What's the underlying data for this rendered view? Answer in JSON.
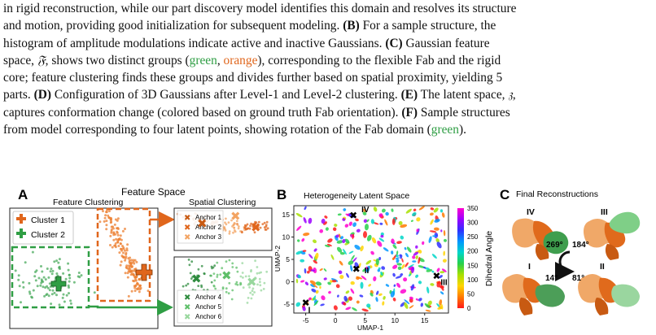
{
  "caption": {
    "line1": "in rigid reconstruction, while our part discovery model identifies this domain and resolves its structure",
    "line2": "and motion, providing good initialization for subsequent modeling.",
    "label_B": "(B)",
    "line2b": "For a sample structure, the",
    "line3": "histogram of amplitude modulations indicate active and inactive Gaussians.",
    "label_C": "(C)",
    "line3b": "Gaussian feature",
    "line4a": "space,",
    "frak_F": "𝔉",
    "line4b": ", shows two distinct groups (",
    "green_word": "green",
    "comma": ", ",
    "orange_word": "orange",
    "line4c": "), corresponding to the flexible Fab and the rigid",
    "line5": "core; feature clustering finds these groups and divides further based on spatial proximity, yielding 5",
    "line6a": "parts.",
    "label_D": "(D)",
    "line6b": "Configuration of 3D Gaussians after Level-1 and Level-2 clustering.",
    "label_E": "(E)",
    "line6c": "The latent space,",
    "frak_Z": "𝔷",
    "line6d": ",",
    "line7": "captures conformation change (colored based on ground truth Fab orientation).",
    "label_F": "(F)",
    "line7b": "Sample structures",
    "line8a": "from model corresponding to four latent points, showing rotation of the Fab domain (",
    "line8_green": "green",
    "line8b": ")."
  },
  "figure": {
    "panel_A": {
      "label": "A",
      "title": "Feature Space",
      "left_title": "Feature Clustering",
      "right_title": "Spatial Clustering",
      "legend": [
        "Cluster 1",
        "Cluster 2"
      ],
      "anchors_top": [
        "Anchor 1",
        "Anchor 2",
        "Anchor 3"
      ],
      "anchors_bottom": [
        "Anchor 4",
        "Anchor 5",
        "Anchor 6"
      ]
    },
    "panel_B": {
      "label": "B",
      "title": "Heterogeneity Latent Space",
      "xlabel": "UMAP-1",
      "ylabel": "UMAP-2",
      "colorbar_label": "Dihedral Angle",
      "point_labels": [
        "I",
        "II",
        "III",
        "IV"
      ]
    },
    "panel_C": {
      "label": "C",
      "title": "Final Reconstructions",
      "structure_labels": [
        "IV",
        "III",
        "I",
        "II"
      ],
      "angles": [
        "269°",
        "184°",
        "14°",
        "81°"
      ]
    },
    "colors": {
      "green": "#2f9e44",
      "orange": "#e0661c",
      "green_dark": "#2e8b3e",
      "orange_dark": "#c85a12"
    }
  },
  "chart_data": [
    {
      "type": "scatter",
      "title": "Heterogeneity Latent Space",
      "xlabel": "UMAP-1",
      "ylabel": "UMAP-2",
      "xticks": [
        -5,
        0,
        5,
        10,
        15
      ],
      "yticks": [
        -5,
        0,
        5,
        10,
        15
      ],
      "xlim": [
        -7,
        19
      ],
      "ylim": [
        -7,
        17
      ],
      "colorbar": {
        "label": "Dihedral Angle",
        "ticks": [
          0,
          50,
          100,
          150,
          200,
          250,
          300,
          350
        ],
        "colormap": "gist_rainbow"
      },
      "marked_points": [
        {
          "label": "I",
          "x": -5,
          "y": -4.5
        },
        {
          "label": "II",
          "x": 3.5,
          "y": 3
        },
        {
          "label": "III",
          "x": 17,
          "y": 1.5
        },
        {
          "label": "IV",
          "x": 3,
          "y": 15
        }
      ]
    }
  ]
}
